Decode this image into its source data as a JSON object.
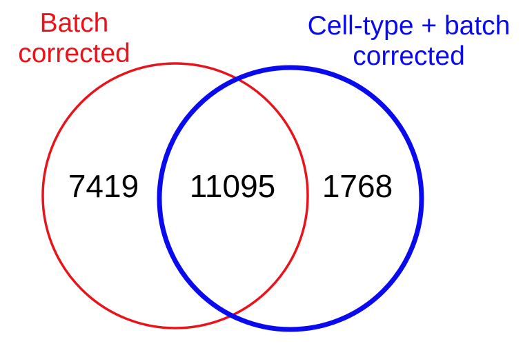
{
  "diagram": {
    "type": "venn",
    "sets": [
      {
        "id": "a",
        "label_lines": [
          "Batch",
          "corrected"
        ],
        "color": "#e8141b",
        "unique_count": "7419"
      },
      {
        "id": "b",
        "label_lines": [
          "Cell-type + batch",
          "corrected"
        ],
        "color": "#0a0aef",
        "unique_count": "1768"
      }
    ],
    "intersection_count": "11095"
  }
}
